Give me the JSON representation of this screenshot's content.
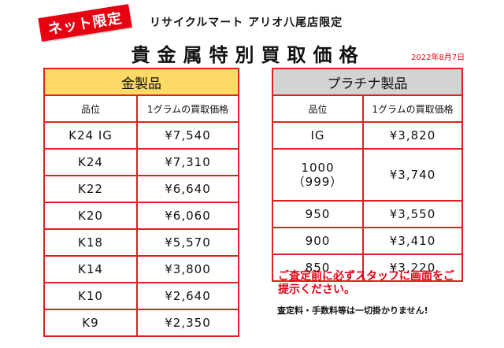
{
  "badge": "ネット限定",
  "store": "リサイクルマート アリオ八尾店限定",
  "title": "貴金属特別買取価格",
  "date": "2022年8月7日",
  "gold": {
    "header": "金製品",
    "columns": [
      "品位",
      "1グラムの買取価格"
    ],
    "rows": [
      {
        "grade": "K24 IG",
        "price": "¥7,540"
      },
      {
        "grade": "K24",
        "price": "¥7,310"
      },
      {
        "grade": "K22",
        "price": "¥6,640"
      },
      {
        "grade": "K20",
        "price": "¥6,060"
      },
      {
        "grade": "K18",
        "price": "¥5,570"
      },
      {
        "grade": "K14",
        "price": "¥3,800"
      },
      {
        "grade": "K10",
        "price": "¥2,640"
      },
      {
        "grade": "K9",
        "price": "¥2,350"
      }
    ]
  },
  "platinum": {
    "header": "プラチナ製品",
    "columns": [
      "品位",
      "1グラムの買取価格"
    ],
    "rows": [
      {
        "grade": "IG",
        "price": "¥3,820"
      },
      {
        "grade": "1000",
        "grade_sub": "（999）",
        "price": "¥3,740"
      },
      {
        "grade": "950",
        "price": "¥3,550"
      },
      {
        "grade": "900",
        "price": "¥3,410"
      },
      {
        "grade": "850",
        "price": "¥3,220"
      }
    ]
  },
  "notice_line1": "ご査定前に必ずスタッフに画面をご",
  "notice_line2": "提示ください。",
  "no_fee": "査定料・手数料等は一切掛かりません!",
  "colors": {
    "accent_red": "#e60012",
    "gold_header": "#ffd966",
    "platinum_header": "#d3d3d3"
  }
}
